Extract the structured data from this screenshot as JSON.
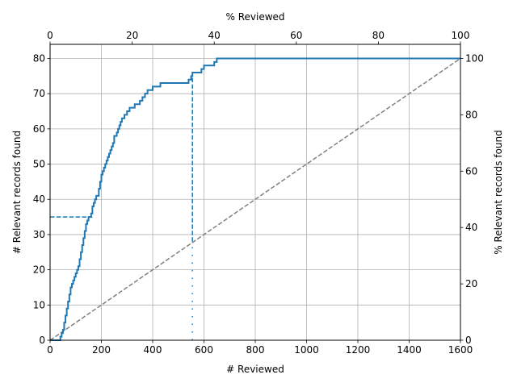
{
  "chart_data": {
    "type": "line",
    "xlabel": "# Reviewed",
    "ylabel": "# Relevant records found",
    "top_xlabel": "% Reviewed",
    "right_ylabel": "% Relevant records found",
    "xlim": [
      0,
      1600
    ],
    "ylim": [
      0,
      84
    ],
    "top_xlim": [
      0,
      100
    ],
    "right_ylim": [
      0,
      105
    ],
    "x_ticks": [
      0,
      200,
      400,
      600,
      800,
      1000,
      1200,
      1400,
      1600
    ],
    "y_ticks": [
      0,
      10,
      20,
      30,
      40,
      50,
      60,
      70,
      80
    ],
    "top_x_ticks": [
      0,
      20,
      40,
      60,
      80,
      100
    ],
    "right_y_ticks": [
      0,
      20,
      40,
      60,
      80,
      100
    ],
    "grid": true,
    "colors": {
      "series": "#1f77b4",
      "random": "#808080"
    },
    "series": [
      {
        "style": "solid",
        "x": [
          0,
          35,
          40,
          45,
          50,
          55,
          60,
          65,
          70,
          75,
          80,
          85,
          90,
          95,
          100,
          105,
          110,
          115,
          120,
          125,
          130,
          135,
          140,
          145,
          150,
          160,
          165,
          170,
          175,
          180,
          190,
          195,
          200,
          205,
          210,
          215,
          220,
          225,
          230,
          235,
          240,
          245,
          250,
          260,
          265,
          270,
          275,
          280,
          290,
          300,
          310,
          330,
          350,
          360,
          370,
          380,
          400,
          430,
          520,
          540,
          550,
          555,
          560,
          580,
          590,
          600,
          640,
          650,
          1600
        ],
        "y": [
          0,
          0,
          1,
          2,
          3,
          5,
          7,
          9,
          11,
          13,
          15,
          16,
          17,
          18,
          19,
          20,
          21,
          23,
          25,
          27,
          29,
          31,
          33,
          34,
          35,
          36,
          38,
          39,
          40,
          41,
          43,
          45,
          47,
          48,
          49,
          50,
          51,
          52,
          53,
          54,
          55,
          56,
          58,
          59,
          60,
          61,
          62,
          63,
          64,
          65,
          66,
          67,
          68,
          69,
          70,
          71,
          72,
          73,
          73,
          74,
          75,
          76,
          76,
          76,
          77,
          78,
          79,
          80,
          80
        ]
      },
      {
        "style": "dashed",
        "x": [
          0,
          1600
        ],
        "y": [
          0,
          80
        ]
      }
    ],
    "annotations": {
      "h_dashed": {
        "y": 35,
        "x_end": 165
      },
      "v_dashed": {
        "x": 555,
        "y_start": 28,
        "y_end": 75
      },
      "v_dotted": {
        "x": 555,
        "y_start": 0,
        "y_end": 28
      }
    }
  }
}
